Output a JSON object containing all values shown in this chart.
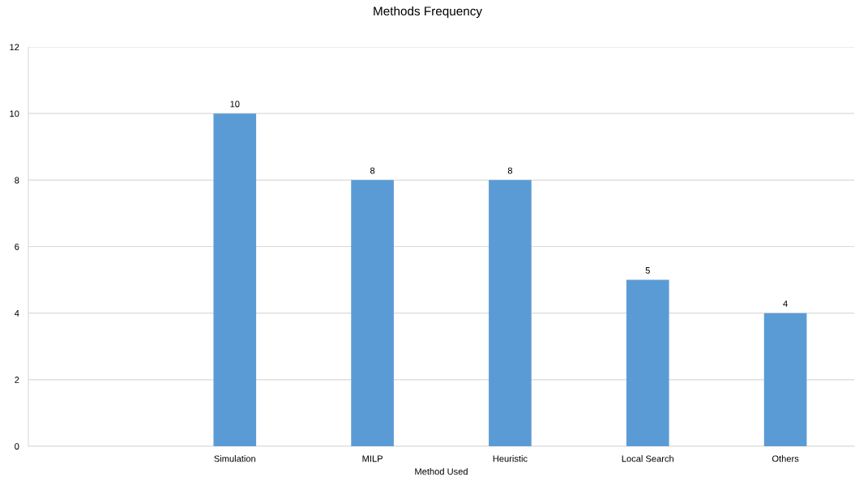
{
  "chart_data": {
    "type": "bar",
    "title": "Methods Frequency",
    "xlabel": "Method Used",
    "categories": [
      null,
      "Simulation",
      "MILP",
      "Heuristic",
      "Local Search",
      "Others"
    ],
    "values": [
      null,
      10,
      8,
      8,
      5,
      4
    ],
    "color": "#5b9bd5",
    "ylim": [
      0,
      12
    ],
    "yticks": [
      0,
      2,
      4,
      6,
      8,
      10,
      12
    ],
    "grid": "y",
    "data_labels": true
  }
}
